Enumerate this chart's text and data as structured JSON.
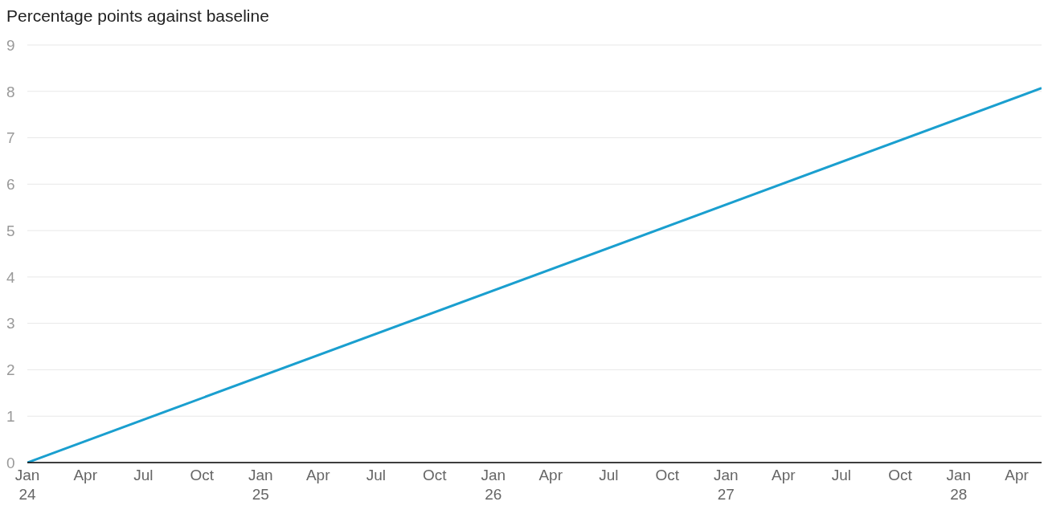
{
  "chart_data": {
    "type": "line",
    "title": "Percentage points against baseline",
    "x": [
      "2024-01-01",
      "2028-05-10"
    ],
    "series": [
      {
        "color": "#1a9fcf",
        "values": [
          0,
          8.07
        ]
      }
    ],
    "xlim": [
      "2024-01-01",
      "2028-05-10"
    ],
    "xticks": [
      {
        "value": "2024-01-01",
        "label": "Jan 24"
      },
      {
        "value": "2024-04-01",
        "label": "Apr"
      },
      {
        "value": "2024-07-01",
        "label": "Jul"
      },
      {
        "value": "2024-10-01",
        "label": "Oct"
      },
      {
        "value": "2025-01-01",
        "label": "Jan 25"
      },
      {
        "value": "2025-04-01",
        "label": "Apr"
      },
      {
        "value": "2025-07-01",
        "label": "Jul"
      },
      {
        "value": "2025-10-01",
        "label": "Oct"
      },
      {
        "value": "2026-01-01",
        "label": "Jan 26"
      },
      {
        "value": "2026-04-01",
        "label": "Apr"
      },
      {
        "value": "2026-07-01",
        "label": "Jul"
      },
      {
        "value": "2026-10-01",
        "label": "Oct"
      },
      {
        "value": "2027-01-01",
        "label": "Jan 27"
      },
      {
        "value": "2027-04-01",
        "label": "Apr"
      },
      {
        "value": "2027-07-01",
        "label": "Jul"
      },
      {
        "value": "2027-10-01",
        "label": "Oct"
      },
      {
        "value": "2028-01-01",
        "label": "Jan 28"
      },
      {
        "value": "2028-04-01",
        "label": "Apr"
      }
    ],
    "ylim": [
      0,
      9
    ],
    "yticks": [
      0,
      1,
      2,
      3,
      4,
      5,
      6,
      7,
      8,
      9
    ],
    "grid": "y",
    "marker": "none",
    "line_style": "solid",
    "legend": false
  }
}
